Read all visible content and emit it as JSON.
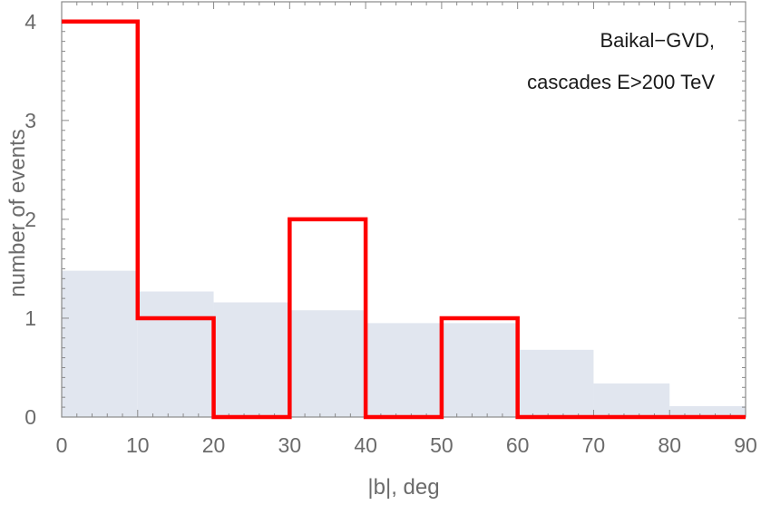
{
  "chart_data": {
    "type": "bar",
    "title": "",
    "xlabel": "|b|, deg",
    "ylabel": "number of events",
    "xlim": [
      0,
      90
    ],
    "ylim": [
      0,
      4.2
    ],
    "x_ticks": [
      "0",
      "10",
      "20",
      "30",
      "40",
      "50",
      "60",
      "70",
      "80",
      "90"
    ],
    "y_ticks": [
      "0",
      "1",
      "2",
      "3",
      "4"
    ],
    "bin_edges": [
      0,
      10,
      20,
      30,
      40,
      50,
      60,
      70,
      80,
      90
    ],
    "annotation": [
      "Baikal−GVD,",
      "cascades E>200 TeV"
    ],
    "grid": false,
    "series": [
      {
        "style": "filled histogram",
        "color": "#e1e6ef",
        "values": [
          1.48,
          1.27,
          1.16,
          1.08,
          0.95,
          0.95,
          0.68,
          0.34,
          0.11
        ]
      },
      {
        "style": "step line",
        "color": "#ff0000",
        "values": [
          4,
          1,
          0,
          2,
          0,
          1,
          0,
          0,
          0
        ]
      }
    ]
  }
}
